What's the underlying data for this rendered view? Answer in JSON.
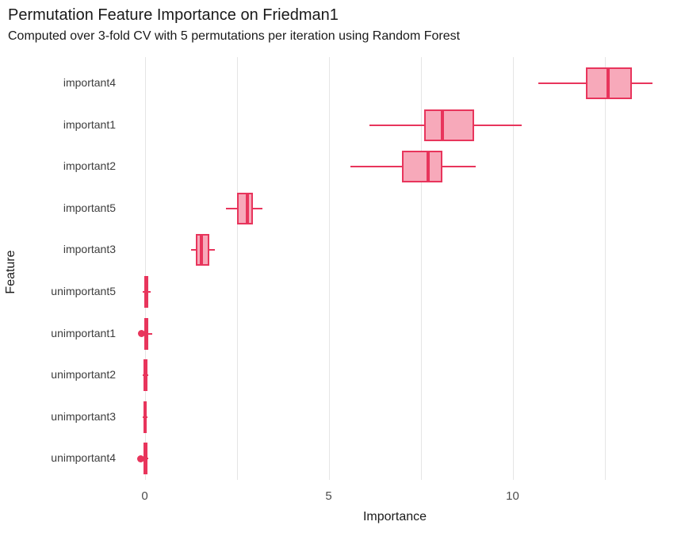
{
  "page": {
    "background": "#ffffff"
  },
  "chart_data": {
    "type": "boxplot",
    "orientation": "horizontal",
    "title": "Permutation Feature Importance on Friedman1",
    "subtitle": "Computed over 3-fold CV with 5 permutations per iteration using Random Forest",
    "xlabel": "Importance",
    "ylabel": "Feature",
    "xlim": [
      -0.7,
      14.3
    ],
    "xticks": [
      0,
      5,
      10
    ],
    "gridlines_x": [
      0,
      2.5,
      5,
      7.5,
      10,
      12.5
    ],
    "grid": "vertical gridlines only, light gray on white background",
    "legend": "none",
    "colors": {
      "box_fill": "#f7a9ba",
      "box_stroke": "#e8355c",
      "gridline": "#e5e5e5",
      "title_text": "#1a1a1a",
      "axis_text": "#3d3d3d"
    },
    "series": [
      {
        "feature": "important4",
        "whisker_low": 10.7,
        "q1": 12.0,
        "median": 12.6,
        "q3": 13.25,
        "whisker_high": 13.8,
        "outliers": []
      },
      {
        "feature": "important1",
        "whisker_low": 6.1,
        "q1": 7.6,
        "median": 8.1,
        "q3": 8.95,
        "whisker_high": 10.25,
        "outliers": []
      },
      {
        "feature": "important2",
        "whisker_low": 5.6,
        "q1": 7.0,
        "median": 7.7,
        "q3": 8.1,
        "whisker_high": 9.0,
        "outliers": []
      },
      {
        "feature": "important5",
        "whisker_low": 2.2,
        "q1": 2.5,
        "median": 2.8,
        "q3": 2.95,
        "whisker_high": 3.2,
        "outliers": []
      },
      {
        "feature": "important3",
        "whisker_low": 1.25,
        "q1": 1.4,
        "median": 1.55,
        "q3": 1.75,
        "whisker_high": 1.9,
        "outliers": []
      },
      {
        "feature": "unimportant5",
        "whisker_low": -0.06,
        "q1": -0.02,
        "median": 0.03,
        "q3": 0.1,
        "whisker_high": 0.16,
        "outliers": []
      },
      {
        "feature": "unimportant1",
        "whisker_low": -0.03,
        "q1": 0.0,
        "median": 0.03,
        "q3": 0.1,
        "whisker_high": 0.2,
        "outliers": [
          -0.08
        ]
      },
      {
        "feature": "unimportant2",
        "whisker_low": -0.06,
        "q1": -0.02,
        "median": 0.02,
        "q3": 0.08,
        "whisker_high": 0.1,
        "outliers": []
      },
      {
        "feature": "unimportant3",
        "whisker_low": -0.05,
        "q1": -0.03,
        "median": 0.0,
        "q3": 0.06,
        "whisker_high": 0.08,
        "outliers": []
      },
      {
        "feature": "unimportant4",
        "whisker_low": -0.05,
        "q1": -0.02,
        "median": 0.02,
        "q3": 0.08,
        "whisker_high": 0.1,
        "outliers": [
          -0.1
        ]
      }
    ]
  }
}
